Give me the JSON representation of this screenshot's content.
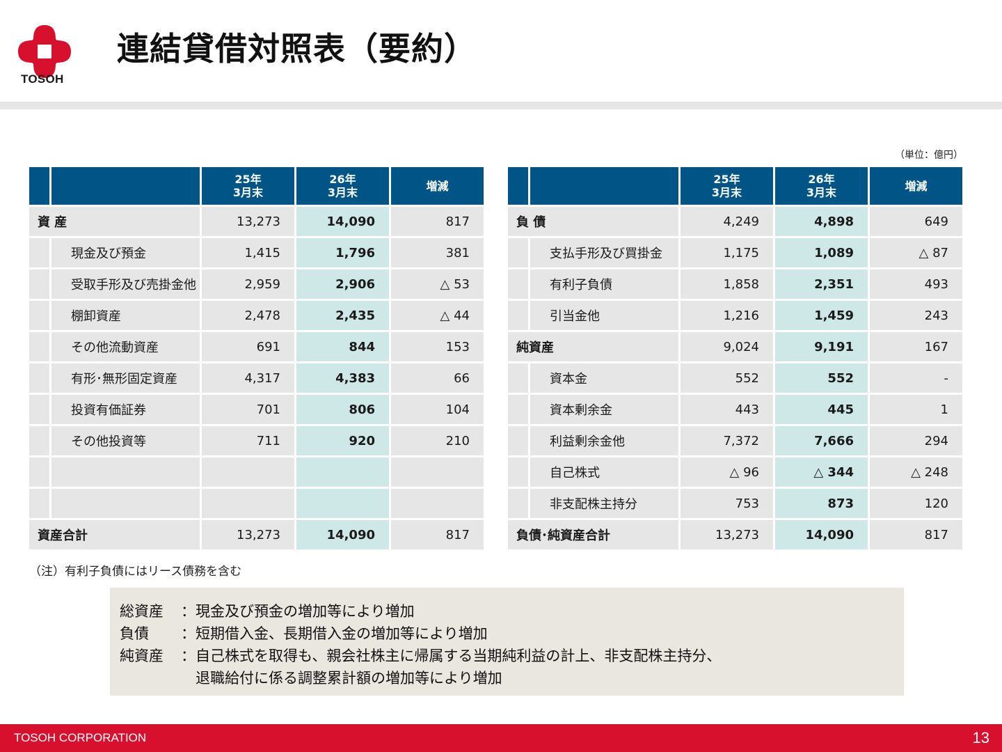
{
  "header": {
    "logo_text": "TOSOH",
    "title": "連結貸借対照表（要約）",
    "unit": "（単位：億円）"
  },
  "left_table": {
    "columns": [
      "25年\n3月末",
      "26年\n3月末",
      "増減"
    ],
    "top": {
      "label": "資 産",
      "prev": "13,273",
      "curr": "14,090",
      "diff": "817"
    },
    "rows": [
      {
        "label": "現金及び預金",
        "prev": "1,415",
        "curr": "1,796",
        "diff": "381"
      },
      {
        "label": "受取手形及び売掛金他",
        "prev": "2,959",
        "curr": "2,906",
        "diff": "△ 53"
      },
      {
        "label": "棚卸資産",
        "prev": "2,478",
        "curr": "2,435",
        "diff": "△ 44"
      },
      {
        "label": "その他流動資産",
        "prev": "691",
        "curr": "844",
        "diff": "153"
      },
      {
        "label": "有形･無形固定資産",
        "prev": "4,317",
        "curr": "4,383",
        "diff": "66"
      },
      {
        "label": "投資有価証券",
        "prev": "701",
        "curr": "806",
        "diff": "104"
      },
      {
        "label": "その他投資等",
        "prev": "711",
        "curr": "920",
        "diff": "210"
      }
    ],
    "total": {
      "label": "資産合計",
      "prev": "13,273",
      "curr": "14,090",
      "diff": "817"
    }
  },
  "right_table": {
    "columns": [
      "25年\n3月末",
      "26年\n3月末",
      "増減"
    ],
    "liab": {
      "label": "負 債",
      "prev": "4,249",
      "curr": "4,898",
      "diff": "649"
    },
    "liab_rows": [
      {
        "label": "支払手形及び買掛金",
        "prev": "1,175",
        "curr": "1,089",
        "diff": "△ 87"
      },
      {
        "label": "有利子負債",
        "prev": "1,858",
        "curr": "2,351",
        "diff": "493"
      },
      {
        "label": "引当金他",
        "prev": "1,216",
        "curr": "1,459",
        "diff": "243"
      }
    ],
    "equity": {
      "label": "純資産",
      "prev": "9,024",
      "curr": "9,191",
      "diff": "167"
    },
    "equity_rows": [
      {
        "label": "資本金",
        "prev": "552",
        "curr": "552",
        "diff": "-"
      },
      {
        "label": "資本剰余金",
        "prev": "443",
        "curr": "445",
        "diff": "1"
      },
      {
        "label": "利益剰余金他",
        "prev": "7,372",
        "curr": "7,666",
        "diff": "294"
      },
      {
        "label": "自己株式",
        "prev": "△ 96",
        "curr": "△ 344",
        "diff": "△ 248"
      },
      {
        "label": "非支配株主持分",
        "prev": "753",
        "curr": "873",
        "diff": "120"
      }
    ],
    "total": {
      "label": "負債･純資産合計",
      "prev": "13,273",
      "curr": "14,090",
      "diff": "817"
    }
  },
  "note": "（注）有利子負債にはリース債務を含む",
  "summary": [
    {
      "key": "総資産",
      "text": "：現金及び預金の増加等により増加"
    },
    {
      "key": "負債",
      "text": "：短期借入金、長期借入金の増加等により増加"
    },
    {
      "key": "純資産",
      "text": "：自己株式を取得も、親会社株主に帰属する当期純利益の計上、非支配株主持分、"
    },
    {
      "key": "",
      "text": "　退職給付に係る調整累計額の増加等により増加"
    }
  ],
  "footer": {
    "company": "TOSOH CORPORATION",
    "page": "13"
  },
  "colors": {
    "header_blue": "#005587",
    "current_col": "#cde8e6",
    "footer_red": "#d7102e",
    "logo_red": "#d7102e"
  }
}
